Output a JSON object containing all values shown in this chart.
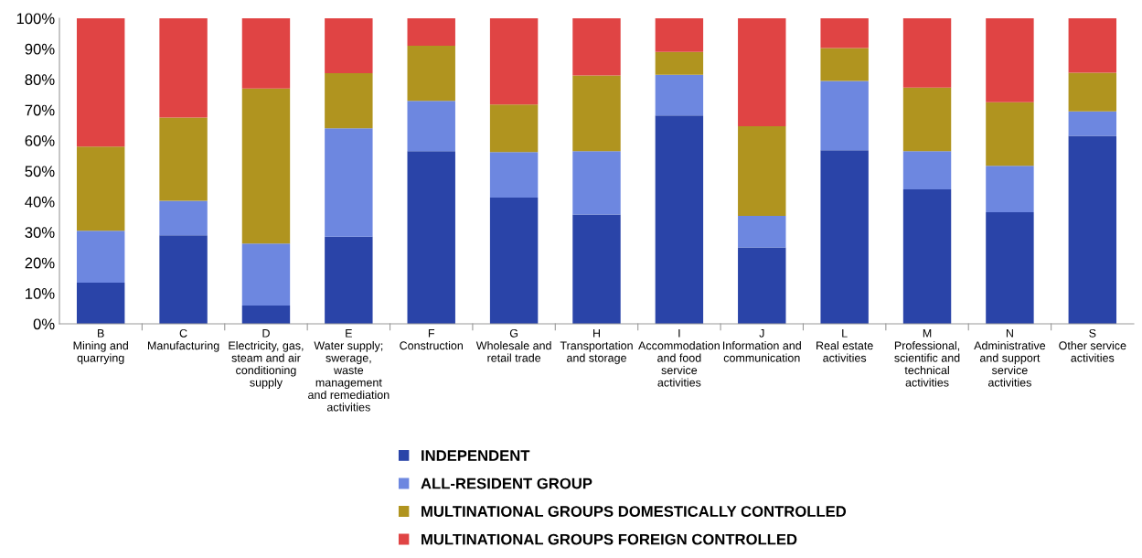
{
  "chart_data": {
    "type": "bar",
    "stacked": true,
    "categories": [
      "B\nMining and\nquarrying",
      "C\nManufacturing",
      "D\nElectricity, gas,\nsteam and air\nconditioning\nsupply",
      "E\nWater supply;\nswerage,\nwaste\nmanagement\nand remediation\nactivities",
      "F\nConstruction",
      "G\nWholesale and\nretail trade",
      "H\nTransportation\nand storage",
      "I\nAccommodation\nand food\nservice\nactivities",
      "J\nInformation and\ncommunication",
      "L\nReal estate\nactivities",
      "M\nProfessional,\nscientific and\ntechnical\nactivities",
      "N\nAdministrative\nand support\nservice\nactivities",
      "S\nOther service\nactivities"
    ],
    "series": [
      {
        "name": "INDEPENDENT",
        "color": "#2a44a8",
        "values": [
          13.5,
          29,
          6,
          28.5,
          56.5,
          41.3,
          35.8,
          68.2,
          25,
          56.8,
          44,
          36.5,
          61.5
        ]
      },
      {
        "name": "ALL-RESIDENT GROUP",
        "color": "#6d87e0",
        "values": [
          17,
          11.3,
          20.3,
          35.5,
          16.5,
          14.9,
          20.7,
          13.3,
          10.3,
          22.7,
          12.5,
          15.2,
          8
        ]
      },
      {
        "name": "MULTINATIONAL GROUPS DOMESTICALLY CONTROLLED",
        "color": "#b0941f",
        "values": [
          27.5,
          27.2,
          50.7,
          18,
          18,
          15.6,
          24.8,
          7.5,
          29.4,
          10.8,
          20.8,
          20.8,
          12.7
        ]
      },
      {
        "name": "MULTINATIONAL GROUPS FOREIGN CONTROLLED",
        "color": "#e04444",
        "values": [
          42,
          32.5,
          23,
          18,
          9,
          28.2,
          18.7,
          11,
          35.3,
          9.7,
          22.7,
          27.5,
          17.8
        ]
      }
    ],
    "ylim": [
      0,
      100
    ],
    "yticks": [
      {
        "value": 0,
        "label": "0%"
      },
      {
        "value": 10,
        "label": "10%"
      },
      {
        "value": 20,
        "label": "20%"
      },
      {
        "value": 30,
        "label": "30%"
      },
      {
        "value": 40,
        "label": "40%"
      },
      {
        "value": 50,
        "label": "50%"
      },
      {
        "value": 60,
        "label": "60%"
      },
      {
        "value": 70,
        "label": "70%"
      },
      {
        "value": 80,
        "label": "80%"
      },
      {
        "value": 90,
        "label": "90%"
      },
      {
        "value": 100,
        "label": "100%"
      }
    ],
    "grid": false,
    "legend": "bottom"
  }
}
